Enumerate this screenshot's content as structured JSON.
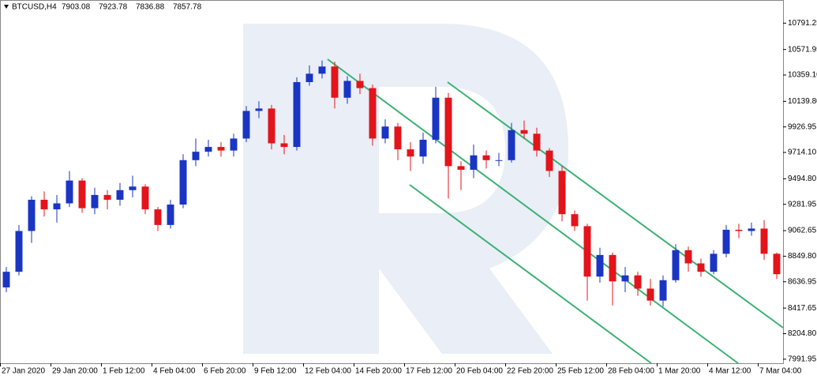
{
  "chart_data": {
    "type": "candlestick",
    "symbol": "BTCUSD,H4",
    "header_values": [
      7903.08,
      7923.78,
      7836.88,
      7857.78
    ],
    "up_color": "#1a35c4",
    "down_color": "#e3141b",
    "categories": [
      "27 Jan 2020",
      null,
      null,
      null,
      "29 Jan 20:00",
      null,
      null,
      null,
      "1 Feb 12:00",
      null,
      null,
      null,
      "4 Feb 04:00",
      null,
      null,
      null,
      "6 Feb 20:00",
      null,
      null,
      null,
      "9 Feb 12:00",
      null,
      null,
      null,
      "12 Feb 04:00",
      null,
      null,
      null,
      "14 Feb 20:00",
      null,
      null,
      null,
      "17 Feb 12:00",
      null,
      null,
      null,
      "20 Feb 04:00",
      null,
      null,
      null,
      "22 Feb 20:00",
      null,
      null,
      null,
      "25 Feb 12:00",
      null,
      null,
      null,
      "28 Feb 04:00",
      null,
      null,
      null,
      "1 Mar 20:00",
      null,
      null,
      null,
      "4 Mar 12:00",
      null,
      null,
      null,
      "7 Mar 04:00",
      null
    ],
    "open": [
      8590,
      8720,
      9060,
      9320,
      9240,
      9290,
      9480,
      9250,
      9360,
      9320,
      9400,
      9430,
      9240,
      9110,
      9280,
      9650,
      9720,
      9760,
      9730,
      9830,
      10060,
      10080,
      9790,
      9760,
      10300,
      10370,
      10430,
      10170,
      10310,
      10250,
      9830,
      9930,
      9740,
      9680,
      9820,
      10170,
      9600,
      9570,
      9690,
      9650,
      9650,
      9900,
      9870,
      9730,
      9560,
      9200,
      9100,
      8680,
      8860,
      8640,
      8690,
      8580,
      8480,
      8650,
      8900,
      8790,
      8720,
      8870,
      9070,
      9060,
      9080,
      8870
    ],
    "high": [
      8760,
      9110,
      9350,
      9390,
      9360,
      9560,
      9500,
      9420,
      9400,
      9460,
      9520,
      9450,
      9260,
      9320,
      9700,
      9830,
      9820,
      9800,
      9870,
      10100,
      10140,
      10110,
      9860,
      10340,
      10440,
      10480,
      10470,
      10350,
      10370,
      10280,
      9990,
      9960,
      9800,
      9880,
      10260,
      10210,
      9640,
      9780,
      9730,
      9710,
      9960,
      9980,
      9920,
      9750,
      9600,
      9230,
      9120,
      8920,
      8880,
      8760,
      8720,
      8660,
      8690,
      8950,
      8930,
      8830,
      8900,
      9110,
      9120,
      9130,
      9150,
      8880
    ],
    "low": [
      8550,
      8690,
      8960,
      9180,
      9130,
      9260,
      9210,
      9200,
      9240,
      9270,
      9340,
      9200,
      9060,
      9080,
      9250,
      9600,
      9680,
      9680,
      9680,
      9800,
      10000,
      9740,
      9700,
      9730,
      10270,
      10330,
      10080,
      10120,
      10200,
      9770,
      9790,
      9650,
      9560,
      9620,
      9790,
      9330,
      9400,
      9500,
      9580,
      9600,
      9630,
      9830,
      9680,
      9510,
      9140,
      9060,
      8480,
      8630,
      8440,
      8550,
      8520,
      8440,
      8430,
      8630,
      8720,
      8680,
      8700,
      8840,
      9000,
      9020,
      8820,
      8660
    ],
    "close": [
      8720,
      9060,
      9320,
      9240,
      9290,
      9480,
      9250,
      9360,
      9320,
      9400,
      9430,
      9240,
      9110,
      9280,
      9650,
      9720,
      9760,
      9730,
      9830,
      10060,
      10080,
      9790,
      9760,
      10300,
      10370,
      10430,
      10170,
      10310,
      10250,
      9830,
      9930,
      9740,
      9680,
      9820,
      10170,
      9600,
      9570,
      9690,
      9650,
      9650,
      9900,
      9870,
      9730,
      9560,
      9200,
      9100,
      8680,
      8860,
      8640,
      8690,
      8580,
      8480,
      8650,
      8900,
      8790,
      8720,
      8870,
      9070,
      9060,
      9080,
      8870,
      8700
    ],
    "ylim": [
      7958,
      10984
    ],
    "yticks": [
      10791.25,
      10571.95,
      {
        "value": 10359.1,
        "label": "10359.10"
      },
      {
        "value": 10139.8,
        "label": "10139.80"
      },
      9926.95,
      {
        "value": 9714.1,
        "label": "9714.10"
      },
      {
        "value": 9494.8,
        "label": "9494.80"
      },
      9281.95,
      9062.65,
      {
        "value": 8849.8,
        "label": "8849.80"
      },
      8636.95,
      8417.65,
      {
        "value": 8204.8,
        "label": "8204.80"
      },
      7991.95
    ]
  }
}
